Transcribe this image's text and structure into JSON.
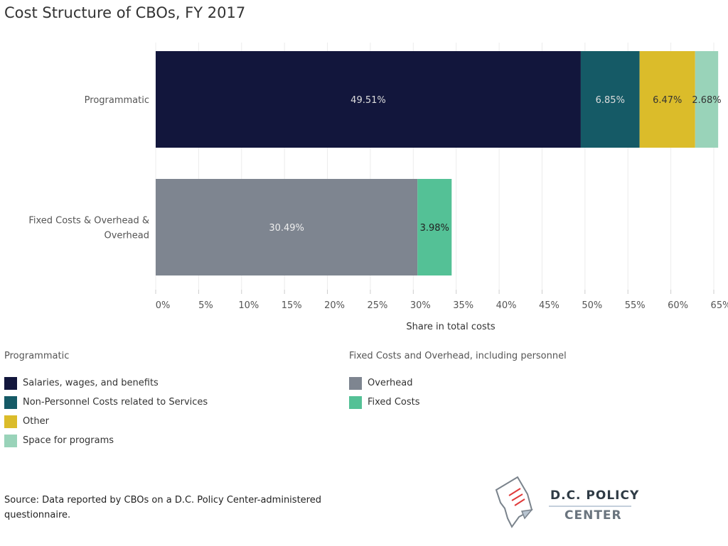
{
  "chart_data": {
    "type": "bar",
    "orientation": "horizontal",
    "stacked": true,
    "title": "Cost Structure of CBOs, FY 2017",
    "xlabel": "Share in total costs",
    "ylabel": "",
    "xlim": [
      0,
      65
    ],
    "xticks": [
      "0%",
      "5%",
      "10%",
      "15%",
      "20%",
      "25%",
      "30%",
      "35%",
      "40%",
      "45%",
      "50%",
      "55%",
      "60%",
      "65%"
    ],
    "grid": true,
    "categories": [
      "Programmatic",
      "Fixed Costs & Overhead & Overhead"
    ],
    "series": [
      {
        "name": "Salaries, wages, and benefits",
        "color": "#12163c",
        "label_color": "#dddddd",
        "values": [
          49.51,
          null
        ],
        "labels": [
          "49.51%",
          null
        ]
      },
      {
        "name": "Non-Personnel Costs related to Services",
        "color": "#155a66",
        "label_color": "#dddddd",
        "values": [
          6.85,
          null
        ],
        "labels": [
          "6.85%",
          null
        ]
      },
      {
        "name": "Other",
        "color": "#dbbc2a",
        "label_color": "#333333",
        "values": [
          6.47,
          null
        ],
        "labels": [
          "6.47%",
          null
        ]
      },
      {
        "name": "Space for programs",
        "color": "#99d3b9",
        "label_color": "#333333",
        "values": [
          2.68,
          null
        ],
        "labels": [
          "2.68%",
          null
        ]
      },
      {
        "name": "Overhead",
        "color": "#7e8590",
        "label_color": "#eeeeee",
        "values": [
          null,
          30.49
        ],
        "labels": [
          null,
          "30.49%"
        ]
      },
      {
        "name": "Fixed Costs",
        "color": "#54c196",
        "label_color": "#222222",
        "values": [
          null,
          3.98
        ],
        "labels": [
          null,
          "3.98%"
        ]
      }
    ],
    "legend": {
      "placement": "bottom",
      "groups": [
        {
          "title": "Programmatic",
          "items": [
            "Salaries, wages, and benefits",
            "Non-Personnel Costs related to Services",
            "Other",
            "Space for programs"
          ]
        },
        {
          "title": "Fixed Costs and Overhead, including personnel",
          "items": [
            "Overhead",
            "Fixed Costs"
          ]
        }
      ]
    }
  },
  "source": "Source: Data reported by CBOs on a D.C. Policy Center-administered questionnaire.",
  "logo": {
    "line1": "D.C. POLICY",
    "line2": "CENTER"
  }
}
